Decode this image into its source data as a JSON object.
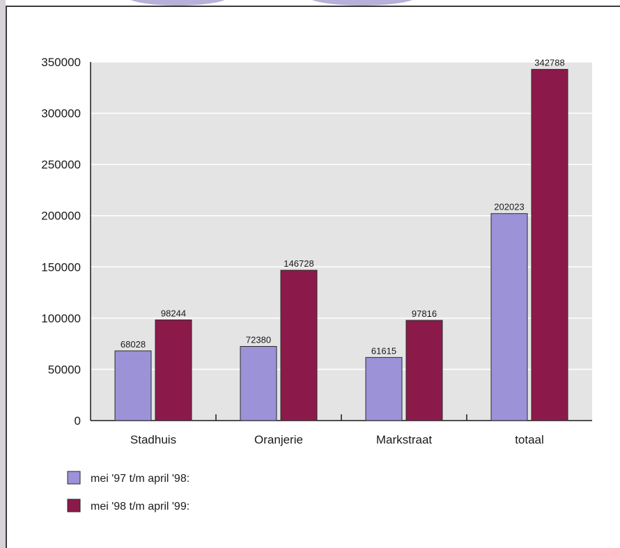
{
  "chart_data": {
    "type": "bar",
    "categories": [
      "Stadhuis",
      "Oranjerie",
      "Markstraat",
      "totaal"
    ],
    "series": [
      {
        "name": "mei '97 t/m april '98:",
        "values": [
          68028,
          72380,
          61615,
          202023
        ],
        "color": "#9b92d8"
      },
      {
        "name": "mei '98 t/m april '99:",
        "values": [
          98244,
          146728,
          97816,
          342788
        ],
        "color": "#8b1a4a"
      }
    ],
    "ylim": [
      0,
      350000
    ],
    "yticks": [
      "0",
      "50000",
      "100000",
      "150000",
      "200000",
      "250000",
      "300000",
      "350000"
    ],
    "ytick_values": [
      0,
      50000,
      100000,
      150000,
      200000,
      250000,
      300000,
      350000
    ],
    "grid": true,
    "legend_position": "bottom-left",
    "plot_background": "#e4e4e4"
  }
}
